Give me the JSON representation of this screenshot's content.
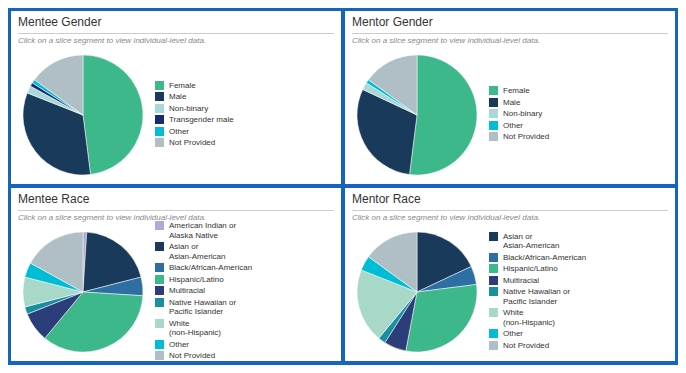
{
  "chart_data": [
    {
      "type": "pie",
      "title": "Mentee Gender",
      "subtitle": "Click on a slice segment to view individual-level data.",
      "legend": "right",
      "categories": [
        "Female",
        "Male",
        "Non-binary",
        "Transgender male",
        "Other",
        "Not Provided"
      ],
      "values": [
        48,
        33,
        2,
        1,
        1,
        15
      ],
      "colors": [
        "#3db88b",
        "#1a3a5c",
        "#a8d8d8",
        "#1a2a6c",
        "#00bcd4",
        "#b0bec5"
      ]
    },
    {
      "type": "pie",
      "title": "Mentor Gender",
      "subtitle": "Click on a slice segment to view individual-level data.",
      "legend": "right",
      "categories": [
        "Female",
        "Male",
        "Non-binary",
        "Other",
        "Not Provided"
      ],
      "values": [
        52,
        30,
        2,
        1,
        15
      ],
      "colors": [
        "#3db88b",
        "#1a3a5c",
        "#a8d8d8",
        "#00bcd4",
        "#b0bec5"
      ]
    },
    {
      "type": "pie",
      "title": "Mentee Race",
      "subtitle": "Click on a slice segment to view individual-level data.",
      "legend": "right",
      "categories": [
        "American Indian or\nAlaska Native",
        "Asian or\nAsian-American",
        "Black/African-American",
        "Hispanic/Latino",
        "Multiracial",
        "Native Hawaiian or\nPacific Islander",
        "White\n(non-Hispanic)",
        "Other",
        "Not Provided"
      ],
      "values": [
        1,
        20,
        5,
        35,
        8,
        2,
        8,
        4,
        17
      ],
      "colors": [
        "#b0a8d8",
        "#1a3a5c",
        "#2e6fa3",
        "#3db88b",
        "#2c3e7a",
        "#1a8fa0",
        "#a8d8c8",
        "#00bcd4",
        "#b0bec5"
      ]
    },
    {
      "type": "pie",
      "title": "Mentor Race",
      "subtitle": "Click on a slice segment to view individual-level data.",
      "legend": "right",
      "categories": [
        "Asian or\nAsian-American",
        "Black/African-American",
        "Hispanic/Latino",
        "Multiracial",
        "Native Hawaiian or\nPacific Islander",
        "White\n(non-Hispanic)",
        "Other",
        "Not Provided"
      ],
      "values": [
        18,
        5,
        30,
        6,
        2,
        20,
        4,
        15
      ],
      "colors": [
        "#1a3a5c",
        "#2e6fa3",
        "#3db88b",
        "#2c3e7a",
        "#1a8fa0",
        "#a8d8c8",
        "#00bcd4",
        "#b0bec5"
      ]
    }
  ]
}
